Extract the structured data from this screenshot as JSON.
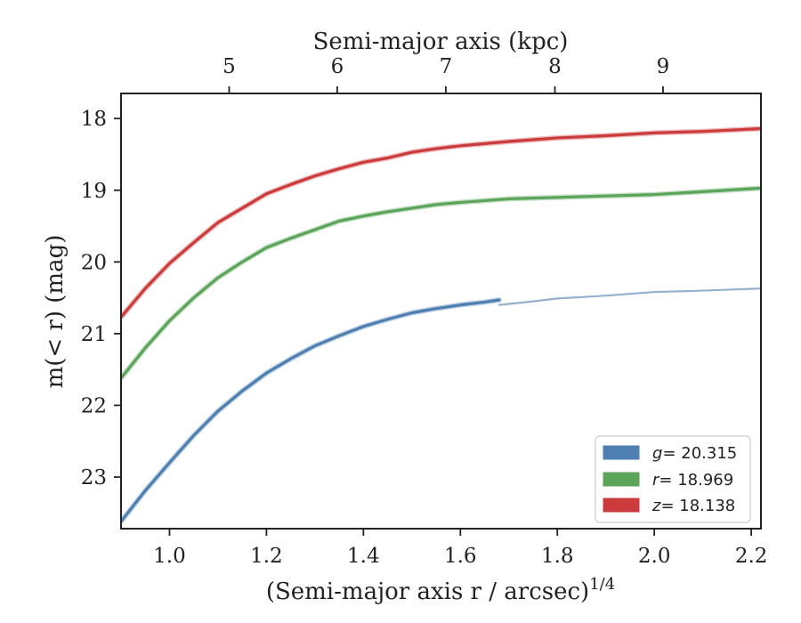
{
  "chart_data": {
    "type": "line",
    "xlabel": "(Semi-major axis r / arcsec)",
    "xlabel_exponent": "1/4",
    "ylabel": "m(< r) (mag)",
    "top_xlabel": "Semi-major axis (kpc)",
    "xlim": [
      0.9,
      2.22
    ],
    "ylim": [
      23.72,
      17.65
    ],
    "y_inverted": true,
    "x_ticks": [
      {
        "value": 1.0,
        "label": "1.0"
      },
      {
        "value": 1.2,
        "label": "1.2"
      },
      {
        "value": 1.4,
        "label": "1.4"
      },
      {
        "value": 1.6,
        "label": "1.6"
      },
      {
        "value": 1.8,
        "label": "1.8"
      },
      {
        "value": 2.0,
        "label": "2.0"
      },
      {
        "value": 2.2,
        "label": "2.2"
      }
    ],
    "y_ticks": [
      {
        "value": 18,
        "label": "18"
      },
      {
        "value": 19,
        "label": "19"
      },
      {
        "value": 20,
        "label": "20"
      },
      {
        "value": 21,
        "label": "21"
      },
      {
        "value": 22,
        "label": "22"
      },
      {
        "value": 23,
        "label": "23"
      }
    ],
    "top_ticks": [
      {
        "value": 1.123,
        "label": "5"
      },
      {
        "value": 1.346,
        "label": "6"
      },
      {
        "value": 1.57,
        "label": "7"
      },
      {
        "value": 1.795,
        "label": "8"
      },
      {
        "value": 2.018,
        "label": "9"
      }
    ],
    "grid": false,
    "legend_position": "bottom-right",
    "series": [
      {
        "name": "g = 20.315",
        "legend_symbol": "g",
        "legend_value": "= 20.315",
        "color": "#4d7fb0",
        "points": [
          [
            0.9,
            23.62
          ],
          [
            0.95,
            23.19
          ],
          [
            1.0,
            22.8
          ],
          [
            1.05,
            22.42
          ],
          [
            1.1,
            22.08
          ],
          [
            1.15,
            21.8
          ],
          [
            1.2,
            21.55
          ],
          [
            1.25,
            21.35
          ],
          [
            1.3,
            21.17
          ],
          [
            1.35,
            21.03
          ],
          [
            1.4,
            20.9
          ],
          [
            1.45,
            20.8
          ],
          [
            1.5,
            20.71
          ],
          [
            1.55,
            20.65
          ],
          [
            1.6,
            20.6
          ],
          [
            1.65,
            20.56
          ],
          [
            1.68,
            20.53
          ]
        ],
        "extrapolation": [
          [
            1.68,
            20.6
          ],
          [
            1.75,
            20.55
          ],
          [
            1.8,
            20.51
          ],
          [
            1.9,
            20.47
          ],
          [
            2.0,
            20.42
          ],
          [
            2.1,
            20.4
          ],
          [
            2.22,
            20.37
          ]
        ]
      },
      {
        "name": "r = 18.969",
        "legend_symbol": "r",
        "legend_value": "= 18.969",
        "color": "#5ba55b",
        "points": [
          [
            0.9,
            21.62
          ],
          [
            0.95,
            21.2
          ],
          [
            1.0,
            20.82
          ],
          [
            1.05,
            20.5
          ],
          [
            1.1,
            20.22
          ],
          [
            1.15,
            20.0
          ],
          [
            1.2,
            19.8
          ],
          [
            1.25,
            19.67
          ],
          [
            1.3,
            19.55
          ],
          [
            1.35,
            19.43
          ],
          [
            1.4,
            19.36
          ],
          [
            1.45,
            19.3
          ],
          [
            1.5,
            19.25
          ],
          [
            1.55,
            19.2
          ],
          [
            1.6,
            19.17
          ],
          [
            1.7,
            19.12
          ],
          [
            1.8,
            19.1
          ],
          [
            1.9,
            19.08
          ],
          [
            2.0,
            19.06
          ],
          [
            2.1,
            19.02
          ],
          [
            2.22,
            18.97
          ]
        ]
      },
      {
        "name": "z = 18.138",
        "legend_symbol": "z",
        "legend_value": "= 18.138",
        "color": "#cc3b3b",
        "points": [
          [
            0.9,
            20.77
          ],
          [
            0.95,
            20.37
          ],
          [
            1.0,
            20.02
          ],
          [
            1.05,
            19.73
          ],
          [
            1.1,
            19.45
          ],
          [
            1.15,
            19.25
          ],
          [
            1.2,
            19.05
          ],
          [
            1.25,
            18.92
          ],
          [
            1.3,
            18.8
          ],
          [
            1.35,
            18.7
          ],
          [
            1.4,
            18.61
          ],
          [
            1.45,
            18.55
          ],
          [
            1.5,
            18.47
          ],
          [
            1.55,
            18.42
          ],
          [
            1.6,
            18.38
          ],
          [
            1.7,
            18.32
          ],
          [
            1.8,
            18.27
          ],
          [
            1.9,
            18.24
          ],
          [
            2.0,
            18.2
          ],
          [
            2.1,
            18.18
          ],
          [
            2.22,
            18.14
          ]
        ]
      }
    ]
  }
}
